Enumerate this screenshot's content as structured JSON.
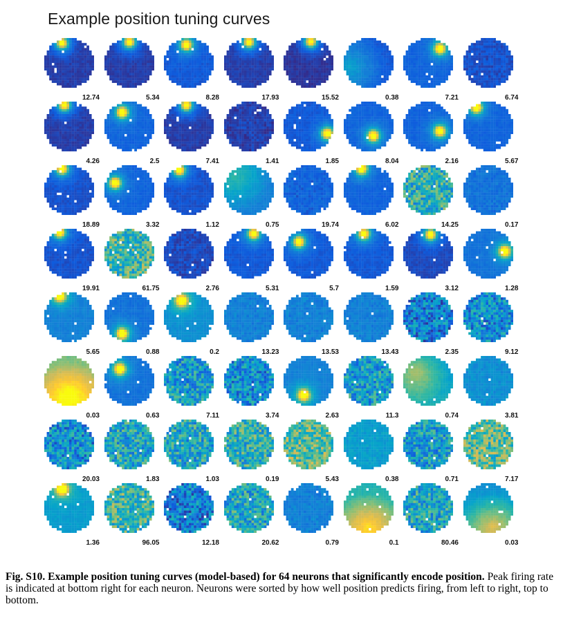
{
  "figure": {
    "title": "Example position tuning curves",
    "caption_bold": "Fig. S10. Example position tuning curves (model-based) for 64 neurons that significantly encode position.",
    "caption_text": "Peak firing rate is indicated at bottom right for each neuron. Neurons were sorted by how well position predicts firing, from left to right, top to bottom."
  },
  "colormap": [
    "#352a87",
    "#0f5cdd",
    "#1481d6",
    "#06a4ca",
    "#2eb7a4",
    "#87bf77",
    "#d1bb59",
    "#fec832",
    "#f9fb0e"
  ],
  "grid": {
    "rows": 8,
    "cols": 8
  },
  "neurons": [
    {
      "rate": "12.74",
      "pattern": "hot-top",
      "base": 0.05,
      "hot": [
        0.35,
        0.08
      ]
    },
    {
      "rate": "5.34",
      "pattern": "hot-top",
      "base": 0.05,
      "hot": [
        0.5,
        0.06
      ]
    },
    {
      "rate": "8.28",
      "pattern": "hot-top",
      "base": 0.12,
      "hot": [
        0.45,
        0.12
      ]
    },
    {
      "rate": "17.93",
      "pattern": "hot-top",
      "base": 0.05,
      "hot": [
        0.5,
        0.06
      ]
    },
    {
      "rate": "15.52",
      "pattern": "hot-top",
      "base": 0.03,
      "hot": [
        0.55,
        0.05
      ]
    },
    {
      "rate": "0.38",
      "pattern": "gradient",
      "base": 0.12,
      "hot": [
        0.1,
        0.6
      ]
    },
    {
      "rate": "7.21",
      "pattern": "hot-right",
      "base": 0.15,
      "hot": [
        0.75,
        0.2
      ]
    },
    {
      "rate": "6.74",
      "pattern": "flat",
      "base": 0.1,
      "hot": [
        0.5,
        0.5
      ]
    },
    {
      "rate": "4.26",
      "pattern": "hot-top",
      "base": 0.05,
      "hot": [
        0.4,
        0.05
      ]
    },
    {
      "rate": "2.5",
      "pattern": "hot-center",
      "base": 0.15,
      "hot": [
        0.35,
        0.2
      ]
    },
    {
      "rate": "7.41",
      "pattern": "hot-top",
      "base": 0.05,
      "hot": [
        0.45,
        0.05
      ]
    },
    {
      "rate": "1.41",
      "pattern": "flat",
      "base": 0.05,
      "hot": [
        0.5,
        0.5
      ]
    },
    {
      "rate": "1.85",
      "pattern": "hot-right",
      "base": 0.12,
      "hot": [
        0.9,
        0.65
      ]
    },
    {
      "rate": "8.04",
      "pattern": "hot-right",
      "base": 0.15,
      "hot": [
        0.6,
        0.7
      ]
    },
    {
      "rate": "2.16",
      "pattern": "hot-right",
      "base": 0.15,
      "hot": [
        0.75,
        0.6
      ]
    },
    {
      "rate": "5.67",
      "pattern": "hot-top",
      "base": 0.15,
      "hot": [
        0.25,
        0.1
      ]
    },
    {
      "rate": "18.89",
      "pattern": "hot-top",
      "base": 0.1,
      "hot": [
        0.35,
        0.05
      ]
    },
    {
      "rate": "3.32",
      "pattern": "hot-left",
      "base": 0.15,
      "hot": [
        0.2,
        0.35
      ]
    },
    {
      "rate": "1.12",
      "pattern": "hot-top",
      "base": 0.1,
      "hot": [
        0.3,
        0.08
      ]
    },
    {
      "rate": "0.75",
      "pattern": "gradient",
      "base": 0.25,
      "hot": [
        0.2,
        0.2
      ]
    },
    {
      "rate": "19.74",
      "pattern": "flat",
      "base": 0.15,
      "hot": [
        0.2,
        0.9
      ]
    },
    {
      "rate": "6.02",
      "pattern": "hot-top",
      "base": 0.15,
      "hot": [
        0.35,
        0.05
      ]
    },
    {
      "rate": "14.25",
      "pattern": "noisy",
      "base": 0.45,
      "hot": [
        0.5,
        0.5
      ]
    },
    {
      "rate": "0.17",
      "pattern": "flat",
      "base": 0.2,
      "hot": [
        0.5,
        0.5
      ]
    },
    {
      "rate": "19.91",
      "pattern": "hot-top",
      "base": 0.1,
      "hot": [
        0.3,
        0.05
      ]
    },
    {
      "rate": "61.75",
      "pattern": "noisy",
      "base": 0.5,
      "hot": [
        0.5,
        0.5
      ]
    },
    {
      "rate": "2.76",
      "pattern": "flat",
      "base": 0.08,
      "hot": [
        0.5,
        0.5
      ]
    },
    {
      "rate": "5.31",
      "pattern": "hot-top",
      "base": 0.12,
      "hot": [
        0.6,
        0.08
      ]
    },
    {
      "rate": "5.7",
      "pattern": "hot-left",
      "base": 0.12,
      "hot": [
        0.3,
        0.25
      ]
    },
    {
      "rate": "1.59",
      "pattern": "hot-top",
      "base": 0.12,
      "hot": [
        0.4,
        0.08
      ]
    },
    {
      "rate": "3.12",
      "pattern": "hot-top",
      "base": 0.08,
      "hot": [
        0.55,
        0.1
      ]
    },
    {
      "rate": "1.28",
      "pattern": "hot-right",
      "base": 0.2,
      "hot": [
        0.85,
        0.45
      ]
    },
    {
      "rate": "5.65",
      "pattern": "hot-top",
      "base": 0.25,
      "hot": [
        0.3,
        0.05
      ]
    },
    {
      "rate": "0.88",
      "pattern": "hot-bottom",
      "base": 0.2,
      "hot": [
        0.35,
        0.85
      ]
    },
    {
      "rate": "0.2",
      "pattern": "hot-top",
      "base": 0.3,
      "hot": [
        0.35,
        0.15
      ]
    },
    {
      "rate": "13.23",
      "pattern": "flat",
      "base": 0.25,
      "hot": [
        0.5,
        0.5
      ]
    },
    {
      "rate": "13.53",
      "pattern": "flat",
      "base": 0.25,
      "hot": [
        0.5,
        0.5
      ]
    },
    {
      "rate": "13.43",
      "pattern": "flat",
      "base": 0.25,
      "hot": [
        0.5,
        0.5
      ]
    },
    {
      "rate": "2.35",
      "pattern": "noisy",
      "base": 0.25,
      "hot": [
        0.5,
        0.5
      ]
    },
    {
      "rate": "9.12",
      "pattern": "noisy",
      "base": 0.3,
      "hot": [
        0.5,
        0.5
      ]
    },
    {
      "rate": "0.03",
      "pattern": "gradient-warm",
      "base": 0.75,
      "hot": [
        0.5,
        0.8
      ]
    },
    {
      "rate": "0.63",
      "pattern": "hot-center",
      "base": 0.2,
      "hot": [
        0.3,
        0.25
      ]
    },
    {
      "rate": "7.11",
      "pattern": "noisy",
      "base": 0.35,
      "hot": [
        0.5,
        0.5
      ]
    },
    {
      "rate": "3.74",
      "pattern": "noisy",
      "base": 0.3,
      "hot": [
        0.5,
        0.5
      ]
    },
    {
      "rate": "2.63",
      "pattern": "hot-bottom",
      "base": 0.25,
      "hot": [
        0.4,
        0.8
      ]
    },
    {
      "rate": "11.3",
      "pattern": "noisy",
      "base": 0.35,
      "hot": [
        0.5,
        0.5
      ]
    },
    {
      "rate": "0.74",
      "pattern": "gradient-warm",
      "base": 0.45,
      "hot": [
        0.25,
        0.3
      ]
    },
    {
      "rate": "3.81",
      "pattern": "flat",
      "base": 0.3,
      "hot": [
        0.5,
        0.5
      ]
    },
    {
      "rate": "20.03",
      "pattern": "noisy",
      "base": 0.3,
      "hot": [
        0.5,
        0.5
      ]
    },
    {
      "rate": "1.83",
      "pattern": "noisy",
      "base": 0.4,
      "hot": [
        0.5,
        0.5
      ]
    },
    {
      "rate": "1.03",
      "pattern": "noisy",
      "base": 0.4,
      "hot": [
        0.5,
        0.5
      ]
    },
    {
      "rate": "0.19",
      "pattern": "noisy",
      "base": 0.45,
      "hot": [
        0.5,
        0.5
      ]
    },
    {
      "rate": "5.43",
      "pattern": "noisy",
      "base": 0.55,
      "hot": [
        0.5,
        0.5
      ]
    },
    {
      "rate": "0.38",
      "pattern": "flat",
      "base": 0.35,
      "hot": [
        0.5,
        0.5
      ]
    },
    {
      "rate": "0.71",
      "pattern": "noisy",
      "base": 0.35,
      "hot": [
        0.5,
        0.5
      ]
    },
    {
      "rate": "7.17",
      "pattern": "noisy",
      "base": 0.55,
      "hot": [
        0.5,
        0.5
      ]
    },
    {
      "rate": "1.36",
      "pattern": "hot-top",
      "base": 0.35,
      "hot": [
        0.35,
        0.1
      ]
    },
    {
      "rate": "96.05",
      "pattern": "noisy",
      "base": 0.5,
      "hot": [
        0.5,
        0.5
      ]
    },
    {
      "rate": "12.18",
      "pattern": "noisy",
      "base": 0.25,
      "hot": [
        0.6,
        0.5
      ]
    },
    {
      "rate": "20.62",
      "pattern": "noisy",
      "base": 0.4,
      "hot": [
        0.5,
        0.5
      ]
    },
    {
      "rate": "0.79",
      "pattern": "flat",
      "base": 0.25,
      "hot": [
        0.5,
        0.5
      ]
    },
    {
      "rate": "0.1",
      "pattern": "gradient-warm",
      "base": 0.6,
      "hot": [
        0.5,
        0.9
      ]
    },
    {
      "rate": "80.46",
      "pattern": "noisy",
      "base": 0.4,
      "hot": [
        0.5,
        0.5
      ]
    },
    {
      "rate": "0.03",
      "pattern": "gradient-warm",
      "base": 0.45,
      "hot": [
        0.6,
        0.9
      ]
    }
  ]
}
